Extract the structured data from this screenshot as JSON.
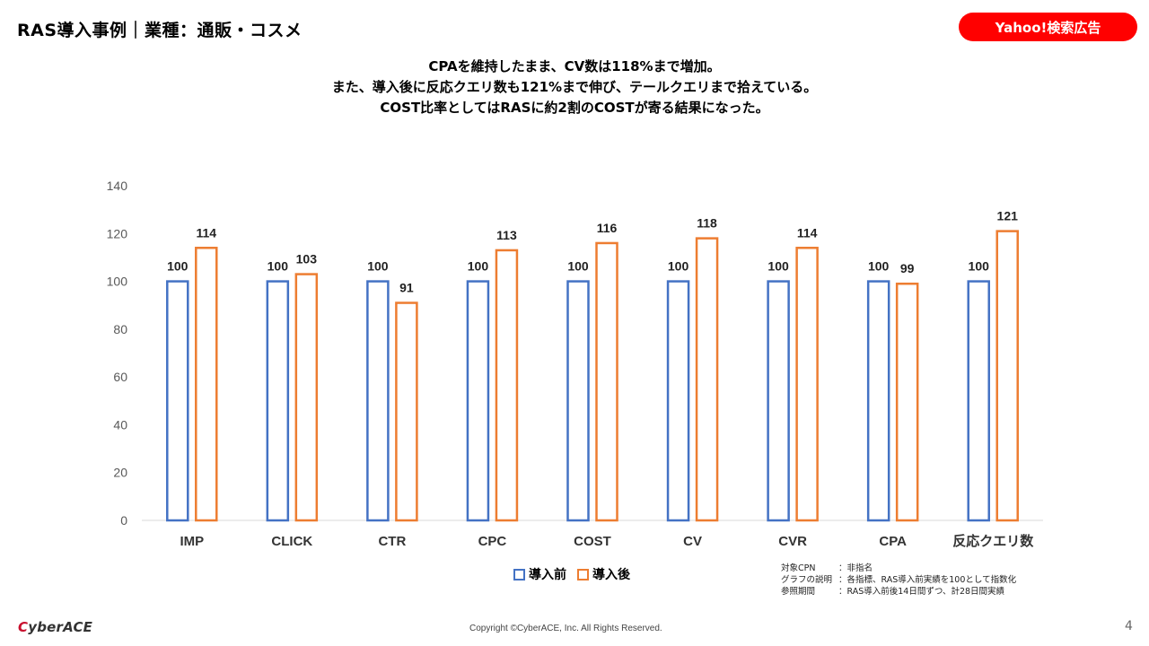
{
  "header": {
    "title": "RAS導入事例｜業種：通販・コスメ",
    "badge": "Yahoo!検索広告"
  },
  "summary": [
    "CPAを維持したまま、CV数は118%まで増加。",
    "また、導入後に反応クエリ数も121%まで伸び、テールクエリまで拾えている。",
    "COST比率としてはRASに約2割のCOSTが寄る結果になった。"
  ],
  "chart_data": {
    "type": "bar",
    "categories": [
      "IMP",
      "CLICK",
      "CTR",
      "CPC",
      "COST",
      "CV",
      "CVR",
      "CPA",
      "反応クエリ数"
    ],
    "series": [
      {
        "name": "導入前",
        "values": [
          100,
          100,
          100,
          100,
          100,
          100,
          100,
          100,
          100
        ],
        "color": "#4472c4"
      },
      {
        "name": "導入後",
        "values": [
          114,
          103,
          91,
          113,
          116,
          118,
          114,
          99,
          121
        ],
        "color": "#ed7d31"
      }
    ],
    "ylim": [
      0,
      140
    ],
    "yticks": [
      0,
      20,
      40,
      60,
      80,
      100,
      120,
      140
    ],
    "grid": false,
    "legend": "bottom"
  },
  "notes": [
    {
      "key": "対象CPN",
      "value": "：非指名"
    },
    {
      "key": "グラフの説明",
      "value": "：各指標、RAS導入前実績を100として指数化"
    },
    {
      "key": "参照期間",
      "value": "：RAS導入前後14日間ずつ、計28日間実績"
    }
  ],
  "footer": {
    "logo_c": "C",
    "logo_rest": "yberACE",
    "copyright": "Copyright ©CyberACE, Inc. All Rights Reserved.",
    "page_number": "4"
  }
}
